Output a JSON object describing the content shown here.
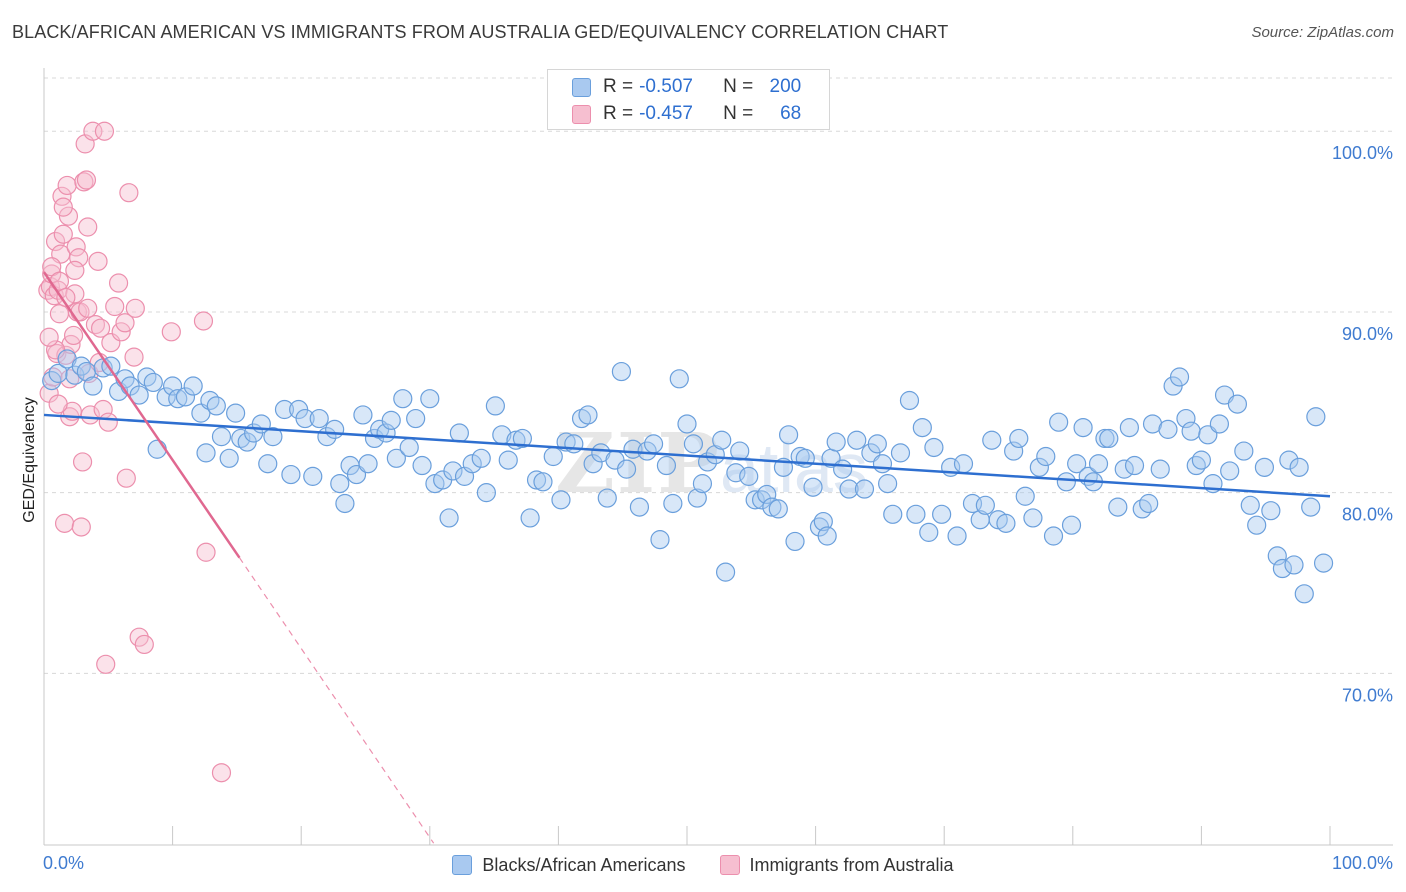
{
  "title": "BLACK/AFRICAN AMERICAN VS IMMIGRANTS FROM AUSTRALIA GED/EQUIVALENCY CORRELATION CHART",
  "source": "Source: ZipAtlas.com",
  "watermark": "ZIPatlas",
  "colors": {
    "blue_fill": "#a9c9f0",
    "blue_stroke": "#6a9fdc",
    "blue_line": "#2e6fd0",
    "pink_fill": "#f6bfd0",
    "pink_stroke": "#ec8fad",
    "pink_line": "#e06890",
    "tick_text": "#3f7bd0",
    "grid": "#d8d8d8"
  },
  "legend_top": {
    "rows": [
      {
        "r_label": "R =",
        "r_value": "-0.507",
        "n_label": "N =",
        "n_value": "200"
      },
      {
        "r_label": "R =",
        "r_value": "-0.457",
        "n_label": "N =",
        "n_value": "68"
      }
    ]
  },
  "legend_bottom": [
    "Blacks/African Americans",
    "Immigrants from Australia"
  ],
  "chart_data": {
    "type": "scatter",
    "title": "BLACK/AFRICAN AMERICAN VS IMMIGRANTS FROM AUSTRALIA GED/EQUIVALENCY CORRELATION CHART",
    "xlabel": "",
    "ylabel": "GED/Equivalency",
    "xlim": [
      0,
      100
    ],
    "ylim": [
      60.5,
      103.5
    ],
    "x_tick_labels": [
      "0.0%",
      "100.0%"
    ],
    "y_ticks": [
      70,
      80,
      90,
      100
    ],
    "y_tick_labels": [
      "70.0%",
      "80.0%",
      "90.0%",
      "100.0%"
    ],
    "grid": true,
    "legend": "top-center",
    "series": [
      {
        "name": "Blacks/African Americans",
        "r": -0.507,
        "n": 200,
        "trend": {
          "x": [
            0,
            100
          ],
          "y": [
            84.3,
            79.8
          ]
        },
        "points": [
          [
            0.6,
            86.2
          ],
          [
            1.1,
            86.6
          ],
          [
            1.8,
            87.4
          ],
          [
            2.4,
            86.5
          ],
          [
            2.9,
            87.0
          ],
          [
            3.3,
            86.7
          ],
          [
            3.8,
            85.9
          ],
          [
            4.6,
            86.9
          ],
          [
            5.2,
            87.0
          ],
          [
            5.8,
            85.6
          ],
          [
            6.3,
            86.3
          ],
          [
            6.7,
            85.9
          ],
          [
            7.4,
            85.4
          ],
          [
            8.0,
            86.4
          ],
          [
            8.5,
            86.1
          ],
          [
            8.8,
            82.4
          ],
          [
            9.5,
            85.3
          ],
          [
            10.0,
            85.9
          ],
          [
            10.4,
            85.2
          ],
          [
            11.0,
            85.3
          ],
          [
            11.6,
            85.9
          ],
          [
            12.2,
            84.4
          ],
          [
            12.6,
            82.2
          ],
          [
            12.9,
            85.1
          ],
          [
            13.4,
            84.8
          ],
          [
            13.8,
            83.1
          ],
          [
            14.4,
            81.9
          ],
          [
            14.9,
            84.4
          ],
          [
            15.3,
            83.0
          ],
          [
            15.8,
            82.8
          ],
          [
            16.3,
            83.3
          ],
          [
            16.9,
            83.8
          ],
          [
            17.4,
            81.6
          ],
          [
            17.8,
            83.1
          ],
          [
            18.7,
            84.6
          ],
          [
            19.2,
            81.0
          ],
          [
            19.8,
            84.6
          ],
          [
            20.3,
            84.1
          ],
          [
            20.9,
            80.9
          ],
          [
            21.4,
            84.1
          ],
          [
            22.0,
            83.1
          ],
          [
            22.6,
            83.5
          ],
          [
            23.0,
            80.5
          ],
          [
            23.4,
            79.4
          ],
          [
            23.8,
            81.5
          ],
          [
            24.3,
            81.0
          ],
          [
            24.8,
            84.3
          ],
          [
            25.2,
            81.6
          ],
          [
            25.7,
            83.0
          ],
          [
            26.1,
            83.5
          ],
          [
            26.6,
            83.3
          ],
          [
            27.0,
            84.0
          ],
          [
            27.4,
            81.9
          ],
          [
            27.9,
            85.2
          ],
          [
            28.4,
            82.5
          ],
          [
            28.9,
            84.1
          ],
          [
            29.4,
            81.5
          ],
          [
            30.0,
            85.2
          ],
          [
            30.4,
            80.5
          ],
          [
            31.0,
            80.7
          ],
          [
            31.5,
            78.6
          ],
          [
            31.8,
            81.2
          ],
          [
            32.3,
            83.3
          ],
          [
            32.7,
            80.9
          ],
          [
            33.3,
            81.6
          ],
          [
            34.0,
            81.9
          ],
          [
            34.4,
            80.0
          ],
          [
            35.1,
            84.8
          ],
          [
            35.6,
            83.2
          ],
          [
            36.1,
            81.8
          ],
          [
            36.7,
            82.9
          ],
          [
            37.2,
            83.0
          ],
          [
            37.8,
            78.6
          ],
          [
            38.3,
            80.7
          ],
          [
            38.8,
            80.6
          ],
          [
            39.6,
            82.0
          ],
          [
            40.2,
            79.6
          ],
          [
            40.6,
            82.8
          ],
          [
            41.2,
            82.7
          ],
          [
            41.8,
            84.1
          ],
          [
            42.3,
            84.3
          ],
          [
            42.7,
            81.6
          ],
          [
            43.3,
            82.2
          ],
          [
            43.8,
            79.7
          ],
          [
            44.4,
            81.8
          ],
          [
            44.9,
            86.7
          ],
          [
            45.3,
            81.3
          ],
          [
            45.8,
            82.4
          ],
          [
            46.3,
            79.2
          ],
          [
            46.9,
            82.3
          ],
          [
            47.4,
            82.7
          ],
          [
            47.9,
            77.4
          ],
          [
            48.4,
            81.5
          ],
          [
            48.9,
            79.4
          ],
          [
            49.4,
            86.3
          ],
          [
            50.0,
            83.8
          ],
          [
            50.5,
            82.7
          ],
          [
            50.8,
            79.7
          ],
          [
            51.2,
            80.5
          ],
          [
            51.6,
            81.7
          ],
          [
            52.2,
            82.1
          ],
          [
            52.7,
            82.9
          ],
          [
            53.0,
            75.6
          ],
          [
            53.8,
            81.1
          ],
          [
            54.1,
            82.3
          ],
          [
            54.8,
            80.9
          ],
          [
            55.3,
            79.6
          ],
          [
            55.8,
            79.6
          ],
          [
            56.2,
            79.9
          ],
          [
            56.6,
            79.2
          ],
          [
            57.1,
            79.1
          ],
          [
            57.5,
            81.4
          ],
          [
            57.9,
            83.2
          ],
          [
            58.4,
            77.3
          ],
          [
            58.8,
            82.0
          ],
          [
            59.2,
            81.9
          ],
          [
            59.8,
            80.3
          ],
          [
            60.3,
            78.1
          ],
          [
            60.6,
            78.4
          ],
          [
            60.9,
            77.6
          ],
          [
            61.2,
            81.9
          ],
          [
            61.6,
            82.8
          ],
          [
            62.1,
            81.3
          ],
          [
            62.6,
            80.2
          ],
          [
            63.2,
            82.9
          ],
          [
            63.8,
            80.2
          ],
          [
            64.3,
            82.2
          ],
          [
            64.8,
            82.7
          ],
          [
            65.2,
            81.6
          ],
          [
            65.6,
            80.5
          ],
          [
            66.0,
            78.8
          ],
          [
            66.6,
            82.2
          ],
          [
            67.3,
            85.1
          ],
          [
            67.8,
            78.8
          ],
          [
            68.3,
            83.6
          ],
          [
            68.8,
            77.8
          ],
          [
            69.2,
            82.5
          ],
          [
            69.8,
            78.8
          ],
          [
            70.5,
            81.4
          ],
          [
            71.0,
            77.6
          ],
          [
            71.5,
            81.6
          ],
          [
            72.2,
            79.4
          ],
          [
            72.8,
            78.5
          ],
          [
            73.2,
            79.3
          ],
          [
            73.7,
            82.9
          ],
          [
            74.2,
            78.5
          ],
          [
            74.8,
            78.3
          ],
          [
            75.4,
            82.3
          ],
          [
            75.8,
            83.0
          ],
          [
            76.3,
            79.8
          ],
          [
            76.9,
            78.6
          ],
          [
            77.4,
            81.4
          ],
          [
            77.9,
            82.0
          ],
          [
            78.5,
            77.6
          ],
          [
            78.9,
            83.9
          ],
          [
            79.5,
            80.6
          ],
          [
            79.9,
            78.2
          ],
          [
            80.3,
            81.6
          ],
          [
            80.8,
            83.6
          ],
          [
            81.2,
            80.9
          ],
          [
            81.6,
            80.6
          ],
          [
            82.0,
            81.6
          ],
          [
            82.5,
            83.0
          ],
          [
            82.8,
            83.0
          ],
          [
            83.5,
            79.2
          ],
          [
            84.0,
            81.3
          ],
          [
            84.4,
            83.6
          ],
          [
            84.8,
            81.5
          ],
          [
            85.4,
            79.1
          ],
          [
            85.9,
            79.4
          ],
          [
            86.2,
            83.8
          ],
          [
            86.8,
            81.3
          ],
          [
            87.4,
            83.5
          ],
          [
            87.8,
            85.9
          ],
          [
            88.3,
            86.4
          ],
          [
            88.8,
            84.1
          ],
          [
            89.2,
            83.4
          ],
          [
            89.6,
            81.5
          ],
          [
            90.0,
            81.8
          ],
          [
            90.5,
            83.2
          ],
          [
            90.9,
            80.5
          ],
          [
            91.4,
            83.8
          ],
          [
            91.8,
            85.4
          ],
          [
            92.2,
            81.2
          ],
          [
            92.8,
            84.9
          ],
          [
            93.3,
            82.3
          ],
          [
            93.8,
            79.3
          ],
          [
            94.3,
            78.2
          ],
          [
            94.9,
            81.4
          ],
          [
            95.4,
            79.0
          ],
          [
            95.9,
            76.5
          ],
          [
            96.3,
            75.8
          ],
          [
            96.8,
            81.8
          ],
          [
            97.2,
            76.0
          ],
          [
            97.6,
            81.4
          ],
          [
            98.0,
            74.4
          ],
          [
            98.5,
            79.2
          ],
          [
            98.9,
            84.2
          ],
          [
            99.5,
            76.1
          ]
        ]
      },
      {
        "name": "Immigrants from Australia",
        "r": -0.457,
        "n": 68,
        "trend": {
          "x": [
            0,
            15.2
          ],
          "y": [
            92.2,
            76.4
          ]
        },
        "trend_extended": {
          "x": [
            15.2,
            30.3
          ],
          "y": [
            76.4,
            60.6
          ]
        },
        "points": [
          [
            0.3,
            91.2
          ],
          [
            0.4,
            85.5
          ],
          [
            0.5,
            91.4
          ],
          [
            0.6,
            92.1
          ],
          [
            0.7,
            86.4
          ],
          [
            0.8,
            90.9
          ],
          [
            0.9,
            93.9
          ],
          [
            1.0,
            87.7
          ],
          [
            1.1,
            91.2
          ],
          [
            1.2,
            89.9
          ],
          [
            1.3,
            93.2
          ],
          [
            1.4,
            96.4
          ],
          [
            1.5,
            94.3
          ],
          [
            1.6,
            78.3
          ],
          [
            1.7,
            87.6
          ],
          [
            1.8,
            97.0
          ],
          [
            1.9,
            95.3
          ],
          [
            2.0,
            84.2
          ],
          [
            2.1,
            88.2
          ],
          [
            2.2,
            84.5
          ],
          [
            2.3,
            88.7
          ],
          [
            2.4,
            91.0
          ],
          [
            2.5,
            93.6
          ],
          [
            2.6,
            90.0
          ],
          [
            2.8,
            90.0
          ],
          [
            2.9,
            78.1
          ],
          [
            3.0,
            81.7
          ],
          [
            3.1,
            97.2
          ],
          [
            3.2,
            99.3
          ],
          [
            3.3,
            97.3
          ],
          [
            3.4,
            94.7
          ],
          [
            3.5,
            86.6
          ],
          [
            3.6,
            84.3
          ],
          [
            3.8,
            100.0
          ],
          [
            4.0,
            89.3
          ],
          [
            4.2,
            92.8
          ],
          [
            4.4,
            89.1
          ],
          [
            4.6,
            84.6
          ],
          [
            4.7,
            100.0
          ],
          [
            4.8,
            70.5
          ],
          [
            5.0,
            83.9
          ],
          [
            5.2,
            88.3
          ],
          [
            5.5,
            90.3
          ],
          [
            5.8,
            91.6
          ],
          [
            6.0,
            88.9
          ],
          [
            6.3,
            89.4
          ],
          [
            6.4,
            80.8
          ],
          [
            6.6,
            96.6
          ],
          [
            7.0,
            87.5
          ],
          [
            7.1,
            90.2
          ],
          [
            7.4,
            72.0
          ],
          [
            7.8,
            71.6
          ],
          [
            9.9,
            88.9
          ],
          [
            12.4,
            89.5
          ],
          [
            12.6,
            76.7
          ],
          [
            13.8,
            64.5
          ],
          [
            1.5,
            95.8
          ],
          [
            2.7,
            93.0
          ],
          [
            0.6,
            92.5
          ],
          [
            1.2,
            91.7
          ],
          [
            0.9,
            87.9
          ],
          [
            2.0,
            86.3
          ],
          [
            3.4,
            90.2
          ],
          [
            1.7,
            90.8
          ],
          [
            4.3,
            87.2
          ],
          [
            0.4,
            88.6
          ],
          [
            2.4,
            92.3
          ],
          [
            1.1,
            84.9
          ]
        ]
      }
    ]
  }
}
